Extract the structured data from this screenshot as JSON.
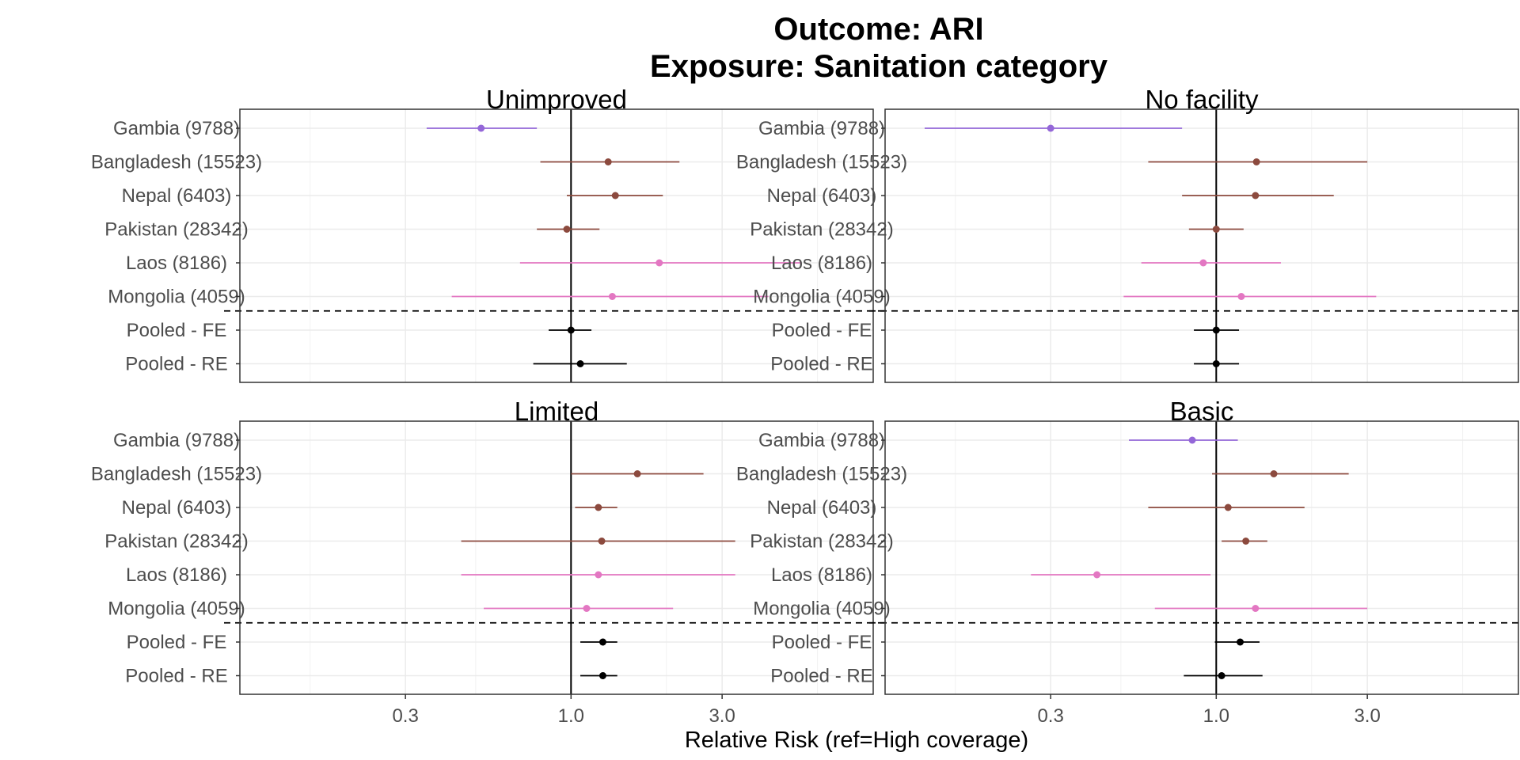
{
  "chart_data": {
    "type": "forest",
    "title_line1": "Outcome: ARI",
    "title_line2": "Exposure: Sanitation category",
    "xlabel": "Relative Risk (ref=High coverage)",
    "x_scale": "log",
    "xlim": [
      0.09,
      9.0
    ],
    "x_ticks": [
      0.3,
      1.0,
      3.0
    ],
    "x_tick_labels": [
      "0.3",
      "1.0",
      "3.0"
    ],
    "reference_line": 1.0,
    "grid": true,
    "studies": [
      "Gambia (9788)",
      "Bangladesh (15523)",
      "Nepal (6403)",
      "Pakistan (28342)",
      "Laos (8186)",
      "Mongolia (4059)",
      "Pooled - FE",
      "Pooled - RE"
    ],
    "colors": {
      "Gambia (9788)": "#9467d8",
      "Bangladesh (15523)": "#8c4a3e",
      "Nepal (6403)": "#8c4a3e",
      "Pakistan (28342)": "#8c4a3e",
      "Laos (8186)": "#e377c2",
      "Mongolia (4059)": "#e377c2",
      "Pooled - FE": "#000000",
      "Pooled - RE": "#000000"
    },
    "facets": [
      {
        "name": "Unimproved",
        "rr": [
          0.52,
          1.31,
          1.38,
          0.97,
          1.9,
          1.35,
          1.0,
          1.07
        ],
        "lo": [
          0.35,
          0.8,
          0.97,
          0.78,
          0.69,
          0.42,
          0.85,
          0.76
        ],
        "hi": [
          0.78,
          2.2,
          1.95,
          1.23,
          5.3,
          4.2,
          1.16,
          1.5
        ]
      },
      {
        "name": "No facility",
        "rr": [
          0.3,
          1.34,
          1.33,
          1.0,
          0.91,
          1.2,
          1.0,
          1.0
        ],
        "lo": [
          0.12,
          0.61,
          0.78,
          0.82,
          0.58,
          0.51,
          0.85,
          0.85
        ],
        "hi": [
          0.78,
          3.0,
          2.35,
          1.22,
          1.6,
          3.2,
          1.18,
          1.18
        ]
      },
      {
        "name": "Limited",
        "rr": [
          null,
          1.62,
          1.22,
          1.25,
          1.22,
          1.12,
          1.26,
          1.26
        ],
        "lo": [
          null,
          1.0,
          1.03,
          0.45,
          0.45,
          0.53,
          1.07,
          1.07
        ],
        "hi": [
          null,
          2.62,
          1.4,
          3.3,
          3.3,
          2.1,
          1.4,
          1.4
        ]
      },
      {
        "name": "Basic",
        "rr": [
          0.84,
          1.52,
          1.09,
          1.24,
          0.42,
          1.33,
          1.19,
          1.04
        ],
        "lo": [
          0.53,
          0.97,
          0.61,
          1.04,
          0.26,
          0.64,
          0.99,
          0.79
        ],
        "hi": [
          1.17,
          2.62,
          1.9,
          1.45,
          0.96,
          3.0,
          1.37,
          1.4
        ]
      }
    ]
  }
}
